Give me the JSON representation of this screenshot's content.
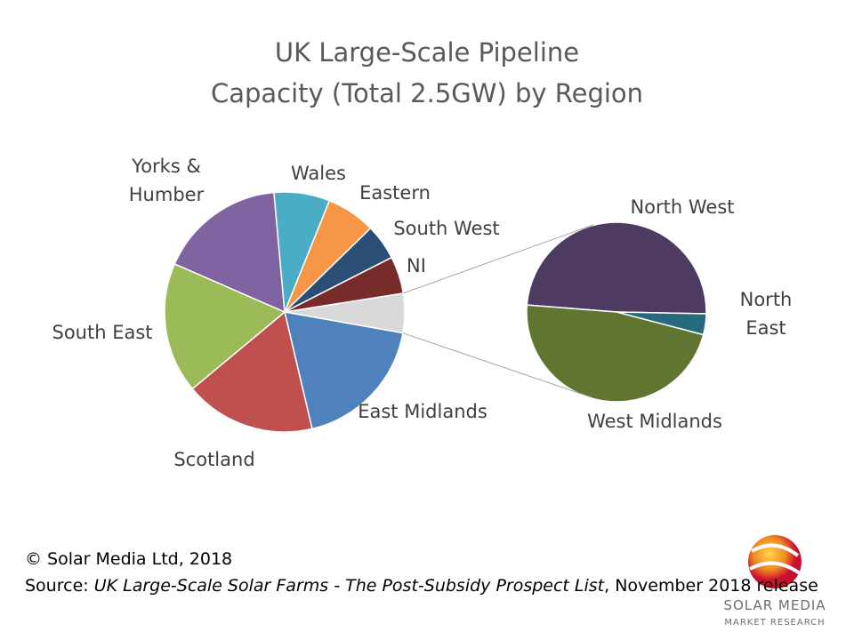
{
  "chart_data": {
    "type": "pie-of-pie",
    "title_lines": [
      "UK Large-Scale Pipeline",
      "Capacity (Total 2.5GW) by Region"
    ],
    "main": {
      "categories": [
        "East Midlands",
        "Scotland",
        "South East",
        "Yorks & Humber",
        "Wales",
        "Eastern",
        "South West",
        "NI"
      ],
      "values": [
        18.5,
        17.6,
        17.6,
        17,
        7.5,
        6.6,
        4.8,
        5
      ],
      "colors": [
        "#4f81bd",
        "#c0504d",
        "#9bbb59",
        "#8064a2",
        "#4bacc6",
        "#f79646",
        "#2c4d75",
        "#772c2a"
      ]
    },
    "other_color": "#d9d9d9",
    "secondary": {
      "categories": [
        "North West",
        "North East",
        "West Midlands"
      ],
      "values": [
        2.6,
        0.2,
        2.5
      ],
      "colors": [
        "#4d3b62",
        "#276a7c",
        "#5f7530"
      ]
    }
  },
  "footer": {
    "copyright": "© Solar Media Ltd, 2018",
    "source_label": "Source: ",
    "source_title": "UK Large-Scale Solar Farms - The Post-Subsidy Prospect List",
    "source_suffix": ", November 2018 release"
  },
  "logo": {
    "name": "SOLAR MEDIA",
    "tagline": "MARKET RESEARCH"
  }
}
